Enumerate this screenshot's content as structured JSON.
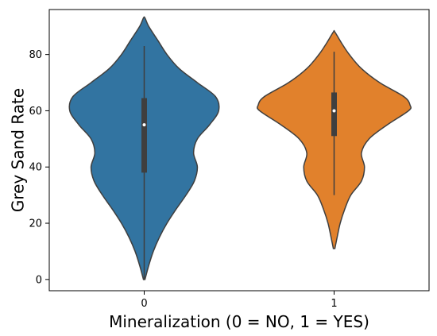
{
  "chart_data": {
    "type": "violin",
    "xlabel": "Mineralization (0 = NO, 1 = YES)",
    "ylabel": "Grey Sand Rate",
    "categories": [
      "0",
      "1"
    ],
    "ylim": [
      -4,
      96
    ],
    "yticks": [
      0,
      20,
      40,
      60,
      80
    ],
    "grid": false,
    "violins": [
      {
        "category": "0",
        "color": "#3274a1",
        "y_range": [
          0,
          93
        ],
        "median": 55,
        "q1": 38,
        "q3": 64.5,
        "whisker_low": 0,
        "whisker_high": 83,
        "density_profile": [
          [
            0,
            0.01
          ],
          [
            5,
            0.06
          ],
          [
            10,
            0.12
          ],
          [
            15,
            0.2
          ],
          [
            20,
            0.3
          ],
          [
            25,
            0.42
          ],
          [
            30,
            0.55
          ],
          [
            35,
            0.66
          ],
          [
            40,
            0.7
          ],
          [
            45,
            0.65
          ],
          [
            50,
            0.7
          ],
          [
            55,
            0.86
          ],
          [
            60,
            0.98
          ],
          [
            65,
            0.94
          ],
          [
            70,
            0.7
          ],
          [
            75,
            0.46
          ],
          [
            80,
            0.3
          ],
          [
            85,
            0.18
          ],
          [
            90,
            0.06
          ],
          [
            93,
            0.01
          ]
        ]
      },
      {
        "category": "1",
        "color": "#e1812c",
        "y_range": [
          11,
          88
        ],
        "median": 60,
        "q1": 51,
        "q3": 66.5,
        "whisker_low": 30,
        "whisker_high": 81,
        "density_profile": [
          [
            11,
            0.01
          ],
          [
            15,
            0.04
          ],
          [
            20,
            0.08
          ],
          [
            25,
            0.14
          ],
          [
            30,
            0.22
          ],
          [
            35,
            0.36
          ],
          [
            40,
            0.4
          ],
          [
            45,
            0.36
          ],
          [
            50,
            0.46
          ],
          [
            55,
            0.7
          ],
          [
            60,
            0.98
          ],
          [
            62,
            1.0
          ],
          [
            65,
            0.92
          ],
          [
            70,
            0.6
          ],
          [
            75,
            0.36
          ],
          [
            80,
            0.2
          ],
          [
            84,
            0.1
          ],
          [
            88,
            0.01
          ]
        ]
      }
    ]
  }
}
